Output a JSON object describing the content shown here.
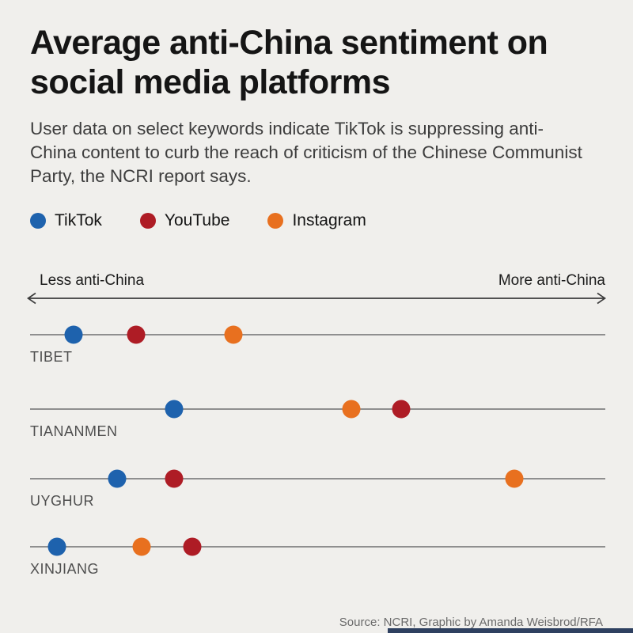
{
  "header": {
    "title": "Average anti-China sentiment on social media platforms",
    "subtitle": "User data on select keywords indicate TikTok is suppressing anti-China content to curb the reach of criticism of the Chinese Communist Party, the NCRI report says."
  },
  "legend": [
    {
      "platform": "tiktok",
      "label": "TikTok"
    },
    {
      "platform": "youtube",
      "label": "YouTube"
    },
    {
      "platform": "instagram",
      "label": "Instagram"
    }
  ],
  "axis": {
    "left_label": "Less anti-China",
    "right_label": "More anti-China"
  },
  "colors": {
    "tiktok": "#1e62ad",
    "youtube": "#ae1c25",
    "instagram": "#e8701f",
    "background": "#f0efec",
    "row_line": "#8f8f8f",
    "bottom_bar": "#2e4060"
  },
  "chart_data": {
    "type": "scatter",
    "subtype": "horizontal-dot-plot",
    "title": "Average anti-China sentiment on social media platforms",
    "x_axis": {
      "label_left": "Less anti-China",
      "label_right": "More anti-China",
      "range": [
        0,
        100
      ],
      "note": "relative unlabeled sentiment scale, 0 = left end of line, 100 = right end"
    },
    "series_names": [
      "TikTok",
      "YouTube",
      "Instagram"
    ],
    "rows": [
      {
        "category": "TIBET",
        "points": [
          {
            "platform": "tiktok",
            "label": "TikTok",
            "value": 7.6
          },
          {
            "platform": "youtube",
            "label": "YouTube",
            "value": 18.4
          },
          {
            "platform": "instagram",
            "label": "Instagram",
            "value": 35.4
          }
        ]
      },
      {
        "category": "TIANANMEN",
        "points": [
          {
            "platform": "tiktok",
            "label": "TikTok",
            "value": 25.0
          },
          {
            "platform": "instagram",
            "label": "Instagram",
            "value": 55.8
          },
          {
            "platform": "youtube",
            "label": "YouTube",
            "value": 64.5
          }
        ]
      },
      {
        "category": "UYGHUR",
        "points": [
          {
            "platform": "tiktok",
            "label": "TikTok",
            "value": 15.1
          },
          {
            "platform": "youtube",
            "label": "YouTube",
            "value": 25.0
          },
          {
            "platform": "instagram",
            "label": "Instagram",
            "value": 84.2
          }
        ]
      },
      {
        "category": "XINJIANG",
        "points": [
          {
            "platform": "tiktok",
            "label": "TikTok",
            "value": 4.7
          },
          {
            "platform": "instagram",
            "label": "Instagram",
            "value": 19.4
          },
          {
            "platform": "youtube",
            "label": "YouTube",
            "value": 28.2
          }
        ]
      }
    ]
  },
  "source": "Source: NCRI, Graphic by Amanda Weisbrod/RFA"
}
